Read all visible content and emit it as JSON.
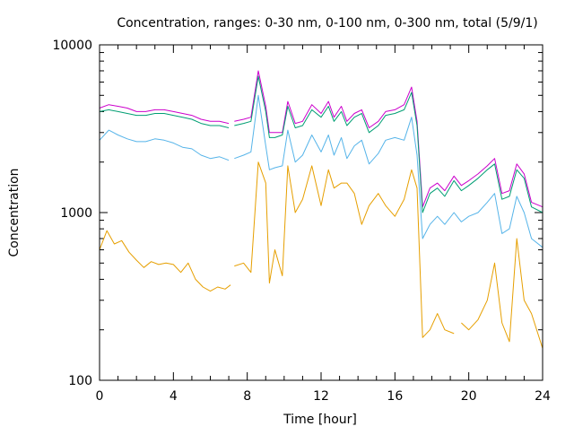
{
  "chart_data": {
    "type": "line",
    "title": "Concentration, ranges: 0-30 nm, 0-100 nm, 0-300 nm, total (5/9/1)",
    "xlabel": "Time [hour]",
    "ylabel": "Concentration",
    "xlim": [
      0,
      24
    ],
    "ylim": [
      100,
      10000
    ],
    "y_scale": "log",
    "grid": false,
    "legend": "none",
    "x_ticks": [
      0,
      4,
      8,
      12,
      16,
      20,
      24
    ],
    "x_tick_labels": [
      "0",
      "4",
      "8",
      "12",
      "16",
      "20",
      "24"
    ],
    "y_ticks": [
      100,
      1000,
      10000
    ],
    "y_tick_labels": [
      "100",
      "1000",
      "10000"
    ],
    "series": [
      {
        "color": "#cc00cc",
        "points": [
          [
            0,
            4200
          ],
          [
            0.5,
            4400
          ],
          [
            1,
            4300
          ],
          [
            1.5,
            4200
          ],
          [
            2,
            4000
          ],
          [
            2.5,
            4000
          ],
          [
            3,
            4100
          ],
          [
            3.5,
            4100
          ],
          [
            4,
            4000
          ],
          [
            4.5,
            3900
          ],
          [
            5,
            3800
          ],
          [
            5.5,
            3600
          ],
          [
            6,
            3500
          ],
          [
            6.5,
            3500
          ],
          [
            7,
            3400
          ],
          null,
          [
            7.3,
            3500
          ],
          [
            7.8,
            3600
          ],
          [
            8.2,
            3700
          ],
          [
            8.6,
            7000
          ],
          [
            9,
            4300
          ],
          [
            9.2,
            3000
          ],
          [
            9.5,
            3000
          ],
          [
            9.9,
            3000
          ],
          [
            10.2,
            4600
          ],
          [
            10.6,
            3400
          ],
          [
            11,
            3500
          ],
          [
            11.5,
            4400
          ],
          [
            12,
            3900
          ],
          [
            12.4,
            4600
          ],
          [
            12.7,
            3700
          ],
          [
            13.1,
            4300
          ],
          [
            13.4,
            3500
          ],
          [
            13.8,
            3900
          ],
          [
            14.2,
            4100
          ],
          [
            14.6,
            3200
          ],
          [
            15.1,
            3500
          ],
          [
            15.5,
            4000
          ],
          [
            16,
            4100
          ],
          [
            16.5,
            4400
          ],
          [
            16.9,
            5600
          ],
          [
            17.2,
            3500
          ],
          [
            17.5,
            1080
          ],
          [
            17.9,
            1400
          ],
          [
            18.3,
            1500
          ],
          [
            18.7,
            1350
          ],
          [
            19.2,
            1650
          ],
          [
            19.6,
            1450
          ],
          [
            20,
            1550
          ],
          [
            20.5,
            1700
          ],
          [
            21,
            1900
          ],
          [
            21.4,
            2100
          ],
          [
            21.8,
            1300
          ],
          [
            22.2,
            1350
          ],
          [
            22.6,
            1950
          ],
          [
            23,
            1700
          ],
          [
            23.4,
            1150
          ],
          [
            24,
            1080
          ]
        ]
      },
      {
        "color": "#009e73",
        "points": [
          [
            0,
            4000
          ],
          [
            0.5,
            4100
          ],
          [
            1,
            4000
          ],
          [
            1.5,
            3900
          ],
          [
            2,
            3800
          ],
          [
            2.5,
            3800
          ],
          [
            3,
            3900
          ],
          [
            3.5,
            3900
          ],
          [
            4,
            3800
          ],
          [
            4.5,
            3700
          ],
          [
            5,
            3600
          ],
          [
            5.5,
            3400
          ],
          [
            6,
            3300
          ],
          [
            6.5,
            3300
          ],
          [
            7,
            3200
          ],
          null,
          [
            7.3,
            3300
          ],
          [
            7.8,
            3400
          ],
          [
            8.2,
            3500
          ],
          [
            8.6,
            6500
          ],
          [
            9,
            4000
          ],
          [
            9.2,
            2800
          ],
          [
            9.5,
            2800
          ],
          [
            9.9,
            2900
          ],
          [
            10.2,
            4300
          ],
          [
            10.6,
            3200
          ],
          [
            11,
            3300
          ],
          [
            11.5,
            4100
          ],
          [
            12,
            3700
          ],
          [
            12.4,
            4300
          ],
          [
            12.7,
            3500
          ],
          [
            13.1,
            4000
          ],
          [
            13.4,
            3300
          ],
          [
            13.8,
            3700
          ],
          [
            14.2,
            3900
          ],
          [
            14.6,
            3000
          ],
          [
            15.1,
            3300
          ],
          [
            15.5,
            3800
          ],
          [
            16,
            3900
          ],
          [
            16.5,
            4100
          ],
          [
            16.9,
            5200
          ],
          [
            17.2,
            3300
          ],
          [
            17.5,
            1000
          ],
          [
            17.9,
            1300
          ],
          [
            18.3,
            1400
          ],
          [
            18.7,
            1250
          ],
          [
            19.2,
            1550
          ],
          [
            19.6,
            1350
          ],
          [
            20,
            1450
          ],
          [
            20.5,
            1600
          ],
          [
            21,
            1800
          ],
          [
            21.4,
            1950
          ],
          [
            21.8,
            1200
          ],
          [
            22.2,
            1250
          ],
          [
            22.6,
            1800
          ],
          [
            23,
            1600
          ],
          [
            23.4,
            1080
          ],
          [
            24,
            1000
          ]
        ]
      },
      {
        "color": "#56b4e9",
        "points": [
          [
            0,
            2700
          ],
          [
            0.5,
            3100
          ],
          [
            1,
            2900
          ],
          [
            1.5,
            2750
          ],
          [
            2,
            2650
          ],
          [
            2.5,
            2650
          ],
          [
            3,
            2750
          ],
          [
            3.5,
            2700
          ],
          [
            4,
            2600
          ],
          [
            4.5,
            2450
          ],
          [
            5,
            2400
          ],
          [
            5.5,
            2200
          ],
          [
            6,
            2100
          ],
          [
            6.5,
            2150
          ],
          [
            7,
            2050
          ],
          null,
          [
            7.3,
            2100
          ],
          [
            7.8,
            2200
          ],
          [
            8.2,
            2300
          ],
          [
            8.6,
            5000
          ],
          [
            9,
            2500
          ],
          [
            9.2,
            1800
          ],
          [
            9.5,
            1850
          ],
          [
            9.9,
            1900
          ],
          [
            10.2,
            3100
          ],
          [
            10.6,
            2000
          ],
          [
            11,
            2200
          ],
          [
            11.5,
            2900
          ],
          [
            12,
            2300
          ],
          [
            12.4,
            2900
          ],
          [
            12.7,
            2200
          ],
          [
            13.1,
            2800
          ],
          [
            13.4,
            2100
          ],
          [
            13.8,
            2500
          ],
          [
            14.2,
            2700
          ],
          [
            14.6,
            1950
          ],
          [
            15.1,
            2250
          ],
          [
            15.5,
            2700
          ],
          [
            16,
            2800
          ],
          [
            16.5,
            2700
          ],
          [
            16.9,
            3700
          ],
          [
            17.2,
            2200
          ],
          [
            17.5,
            700
          ],
          [
            17.9,
            850
          ],
          [
            18.3,
            950
          ],
          [
            18.7,
            850
          ],
          [
            19.2,
            1000
          ],
          [
            19.6,
            880
          ],
          [
            20,
            950
          ],
          [
            20.5,
            1000
          ],
          [
            21,
            1150
          ],
          [
            21.4,
            1300
          ],
          [
            21.8,
            750
          ],
          [
            22.2,
            800
          ],
          [
            22.6,
            1250
          ],
          [
            23,
            1000
          ],
          [
            23.4,
            700
          ],
          [
            24,
            620
          ]
        ]
      },
      {
        "color": "#e69f00",
        "points": [
          [
            0,
            600
          ],
          [
            0.4,
            780
          ],
          [
            0.8,
            650
          ],
          [
            1.2,
            680
          ],
          [
            1.6,
            580
          ],
          [
            2,
            520
          ],
          [
            2.4,
            470
          ],
          [
            2.8,
            510
          ],
          [
            3.2,
            490
          ],
          [
            3.6,
            500
          ],
          [
            4,
            490
          ],
          [
            4.4,
            440
          ],
          [
            4.8,
            500
          ],
          [
            5.2,
            400
          ],
          [
            5.6,
            360
          ],
          [
            6,
            340
          ],
          [
            6.4,
            360
          ],
          [
            6.8,
            350
          ],
          [
            7.1,
            370
          ],
          null,
          [
            7.3,
            480
          ],
          [
            7.8,
            500
          ],
          [
            8.2,
            440
          ],
          [
            8.6,
            2000
          ],
          [
            9,
            1500
          ],
          [
            9.2,
            380
          ],
          [
            9.5,
            600
          ],
          [
            9.9,
            420
          ],
          [
            10.2,
            1900
          ],
          [
            10.6,
            1000
          ],
          [
            11,
            1200
          ],
          [
            11.5,
            1900
          ],
          [
            12,
            1100
          ],
          [
            12.4,
            1800
          ],
          [
            12.7,
            1400
          ],
          [
            13.1,
            1500
          ],
          [
            13.4,
            1500
          ],
          [
            13.8,
            1300
          ],
          [
            14.2,
            850
          ],
          [
            14.6,
            1100
          ],
          [
            15.1,
            1300
          ],
          [
            15.5,
            1100
          ],
          [
            16,
            950
          ],
          [
            16.5,
            1200
          ],
          [
            16.9,
            1800
          ],
          [
            17.2,
            1400
          ],
          [
            17.5,
            180
          ],
          [
            17.9,
            200
          ],
          [
            18.3,
            250
          ],
          [
            18.7,
            200
          ],
          [
            19.2,
            190
          ],
          null,
          [
            19.6,
            220
          ],
          [
            20,
            200
          ],
          [
            20.5,
            230
          ],
          [
            21,
            300
          ],
          [
            21.4,
            500
          ],
          [
            21.8,
            220
          ],
          [
            22.2,
            170
          ],
          [
            22.6,
            700
          ],
          [
            23,
            300
          ],
          [
            23.4,
            250
          ],
          [
            24,
            155
          ]
        ]
      }
    ]
  }
}
